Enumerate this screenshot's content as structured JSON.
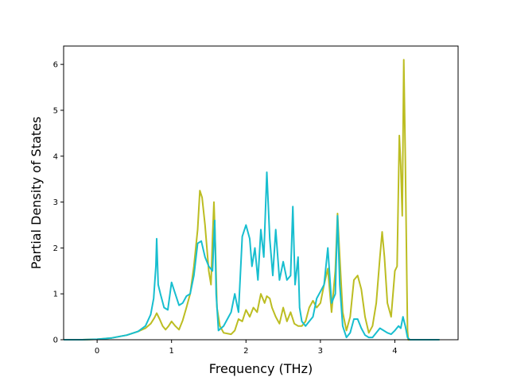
{
  "chart_data": {
    "type": "line",
    "title": "",
    "xlabel": "Frequency (THz)",
    "ylabel": "Partial Density of States",
    "xlim": [
      -0.45,
      4.85
    ],
    "ylim": [
      0,
      6.4
    ],
    "x_ticks": [
      0,
      1,
      2,
      3,
      4
    ],
    "y_ticks": [
      0,
      1,
      2,
      3,
      4,
      5,
      6
    ],
    "grid": false,
    "legend": "none",
    "series": [
      {
        "color": "#bcbd22",
        "line_width": 2,
        "points": [
          [
            -0.45,
            0
          ],
          [
            -0.2,
            0
          ],
          [
            0,
            0.01
          ],
          [
            0.2,
            0.04
          ],
          [
            0.4,
            0.1
          ],
          [
            0.55,
            0.18
          ],
          [
            0.65,
            0.25
          ],
          [
            0.72,
            0.35
          ],
          [
            0.77,
            0.48
          ],
          [
            0.8,
            0.58
          ],
          [
            0.84,
            0.45
          ],
          [
            0.88,
            0.3
          ],
          [
            0.92,
            0.22
          ],
          [
            0.96,
            0.3
          ],
          [
            1.0,
            0.4
          ],
          [
            1.05,
            0.3
          ],
          [
            1.1,
            0.22
          ],
          [
            1.15,
            0.42
          ],
          [
            1.2,
            0.7
          ],
          [
            1.25,
            1.0
          ],
          [
            1.3,
            1.6
          ],
          [
            1.35,
            2.4
          ],
          [
            1.38,
            3.25
          ],
          [
            1.41,
            3.1
          ],
          [
            1.45,
            2.5
          ],
          [
            1.5,
            1.5
          ],
          [
            1.53,
            1.2
          ],
          [
            1.55,
            2.2
          ],
          [
            1.57,
            3.0
          ],
          [
            1.59,
            2.0
          ],
          [
            1.61,
            0.7
          ],
          [
            1.65,
            0.3
          ],
          [
            1.7,
            0.15
          ],
          [
            1.8,
            0.12
          ],
          [
            1.85,
            0.2
          ],
          [
            1.9,
            0.45
          ],
          [
            1.95,
            0.4
          ],
          [
            2.0,
            0.65
          ],
          [
            2.05,
            0.5
          ],
          [
            2.1,
            0.7
          ],
          [
            2.15,
            0.6
          ],
          [
            2.2,
            1.0
          ],
          [
            2.25,
            0.8
          ],
          [
            2.28,
            0.95
          ],
          [
            2.32,
            0.9
          ],
          [
            2.35,
            0.7
          ],
          [
            2.4,
            0.5
          ],
          [
            2.45,
            0.35
          ],
          [
            2.5,
            0.7
          ],
          [
            2.55,
            0.4
          ],
          [
            2.6,
            0.6
          ],
          [
            2.65,
            0.35
          ],
          [
            2.7,
            0.3
          ],
          [
            2.75,
            0.3
          ],
          [
            2.8,
            0.4
          ],
          [
            2.85,
            0.7
          ],
          [
            2.9,
            0.85
          ],
          [
            2.95,
            0.7
          ],
          [
            3.0,
            0.8
          ],
          [
            3.05,
            1.2
          ],
          [
            3.1,
            1.55
          ],
          [
            3.15,
            0.6
          ],
          [
            3.2,
            1.5
          ],
          [
            3.23,
            2.75
          ],
          [
            3.26,
            1.8
          ],
          [
            3.3,
            0.6
          ],
          [
            3.35,
            0.2
          ],
          [
            3.4,
            0.5
          ],
          [
            3.45,
            1.3
          ],
          [
            3.5,
            1.4
          ],
          [
            3.55,
            1.1
          ],
          [
            3.6,
            0.5
          ],
          [
            3.65,
            0.15
          ],
          [
            3.7,
            0.3
          ],
          [
            3.75,
            0.8
          ],
          [
            3.8,
            1.8
          ],
          [
            3.83,
            2.35
          ],
          [
            3.86,
            1.8
          ],
          [
            3.9,
            0.8
          ],
          [
            3.95,
            0.5
          ],
          [
            4.0,
            1.5
          ],
          [
            4.03,
            1.6
          ],
          [
            4.06,
            4.45
          ],
          [
            4.08,
            3.8
          ],
          [
            4.1,
            2.7
          ],
          [
            4.12,
            6.1
          ],
          [
            4.14,
            4.0
          ],
          [
            4.16,
            1.5
          ],
          [
            4.17,
            0.2
          ],
          [
            4.18,
            0
          ],
          [
            4.6,
            0
          ]
        ]
      },
      {
        "color": "#17becf",
        "line_width": 2,
        "points": [
          [
            -0.45,
            0
          ],
          [
            -0.2,
            0
          ],
          [
            0,
            0.01
          ],
          [
            0.2,
            0.04
          ],
          [
            0.4,
            0.1
          ],
          [
            0.55,
            0.18
          ],
          [
            0.65,
            0.3
          ],
          [
            0.72,
            0.55
          ],
          [
            0.76,
            0.9
          ],
          [
            0.79,
            1.6
          ],
          [
            0.8,
            2.2
          ],
          [
            0.82,
            1.2
          ],
          [
            0.85,
            1.0
          ],
          [
            0.9,
            0.7
          ],
          [
            0.95,
            0.65
          ],
          [
            1.0,
            1.25
          ],
          [
            1.05,
            1.0
          ],
          [
            1.1,
            0.75
          ],
          [
            1.15,
            0.8
          ],
          [
            1.2,
            0.95
          ],
          [
            1.25,
            1.0
          ],
          [
            1.3,
            1.4
          ],
          [
            1.35,
            2.1
          ],
          [
            1.4,
            2.15
          ],
          [
            1.45,
            1.8
          ],
          [
            1.5,
            1.6
          ],
          [
            1.55,
            1.5
          ],
          [
            1.58,
            2.6
          ],
          [
            1.6,
            1.0
          ],
          [
            1.63,
            0.2
          ],
          [
            1.7,
            0.3
          ],
          [
            1.75,
            0.45
          ],
          [
            1.8,
            0.6
          ],
          [
            1.85,
            1.0
          ],
          [
            1.9,
            0.6
          ],
          [
            1.95,
            2.25
          ],
          [
            2.0,
            2.5
          ],
          [
            2.05,
            2.2
          ],
          [
            2.08,
            1.6
          ],
          [
            2.12,
            2.0
          ],
          [
            2.16,
            1.3
          ],
          [
            2.2,
            2.4
          ],
          [
            2.24,
            1.8
          ],
          [
            2.28,
            3.65
          ],
          [
            2.32,
            2.2
          ],
          [
            2.36,
            1.4
          ],
          [
            2.4,
            2.4
          ],
          [
            2.45,
            1.3
          ],
          [
            2.5,
            1.7
          ],
          [
            2.55,
            1.3
          ],
          [
            2.6,
            1.4
          ],
          [
            2.63,
            2.9
          ],
          [
            2.66,
            1.2
          ],
          [
            2.7,
            1.8
          ],
          [
            2.72,
            0.7
          ],
          [
            2.75,
            0.4
          ],
          [
            2.8,
            0.3
          ],
          [
            2.85,
            0.4
          ],
          [
            2.9,
            0.5
          ],
          [
            2.95,
            0.9
          ],
          [
            3.0,
            1.05
          ],
          [
            3.05,
            1.2
          ],
          [
            3.1,
            2.0
          ],
          [
            3.15,
            0.8
          ],
          [
            3.2,
            1.0
          ],
          [
            3.23,
            2.7
          ],
          [
            3.26,
            1.2
          ],
          [
            3.3,
            0.3
          ],
          [
            3.35,
            0.05
          ],
          [
            3.4,
            0.15
          ],
          [
            3.45,
            0.45
          ],
          [
            3.5,
            0.45
          ],
          [
            3.55,
            0.25
          ],
          [
            3.6,
            0.1
          ],
          [
            3.65,
            0.05
          ],
          [
            3.7,
            0.05
          ],
          [
            3.75,
            0.15
          ],
          [
            3.8,
            0.25
          ],
          [
            3.85,
            0.2
          ],
          [
            3.9,
            0.15
          ],
          [
            3.95,
            0.12
          ],
          [
            4.0,
            0.2
          ],
          [
            4.05,
            0.3
          ],
          [
            4.08,
            0.25
          ],
          [
            4.11,
            0.5
          ],
          [
            4.14,
            0.3
          ],
          [
            4.17,
            0.05
          ],
          [
            4.2,
            0
          ],
          [
            4.6,
            0
          ]
        ]
      }
    ]
  }
}
